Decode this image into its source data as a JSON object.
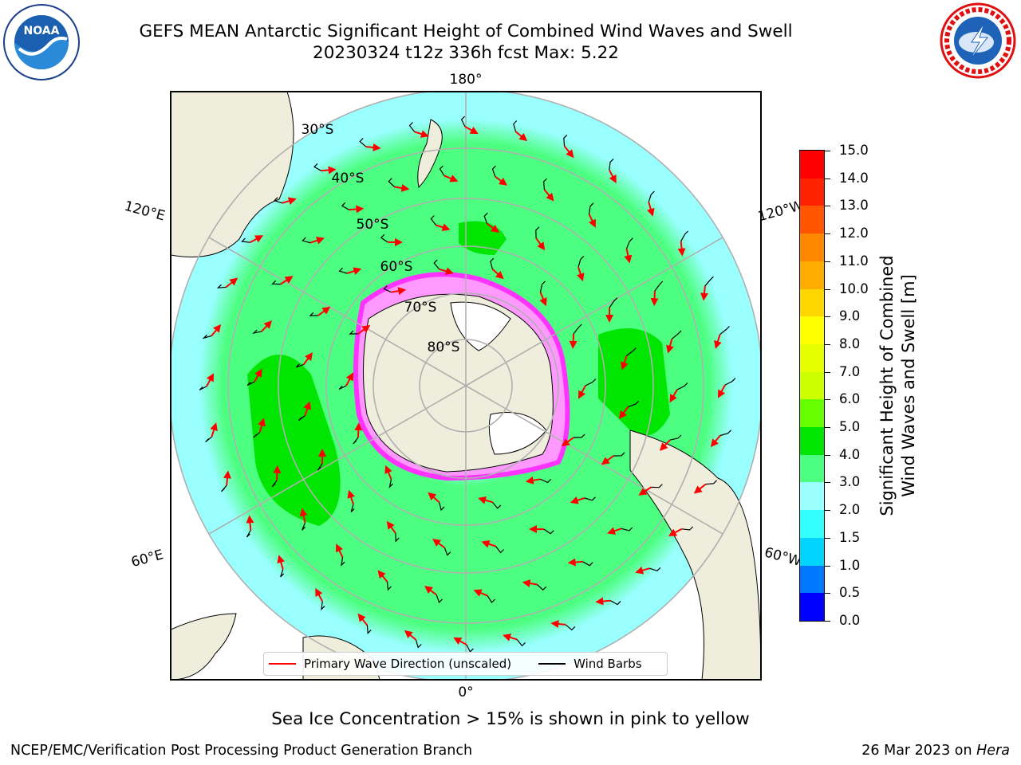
{
  "title_line1": "GEFS MEAN Antarctic Significant Height of Combined Wind Waves and Swell",
  "title_line2": "20230324 t12z 336h fcst   Max: 5.22",
  "longitude_labels": {
    "top": "180°",
    "bottom": "0°",
    "upper_left": "120°E",
    "upper_right": "120°W",
    "lower_left": "60°E",
    "lower_right": "60°W"
  },
  "latitude_labels": [
    "30°S",
    "40°S",
    "50°S",
    "60°S",
    "70°S",
    "80°S"
  ],
  "colorbar": {
    "title_line1": "Significant Height of Combined",
    "title_line2": "Wind Waves and Swell [m]",
    "tick_labels": [
      "0.0",
      "0.5",
      "1.0",
      "1.5",
      "2.0",
      "3.0",
      "4.0",
      "5.0",
      "6.0",
      "7.0",
      "8.0",
      "9.0",
      "10.0",
      "11.0",
      "12.0",
      "13.0",
      "14.0",
      "15.0"
    ],
    "colors": [
      "#0000ff",
      "#0077ff",
      "#00d4ff",
      "#33ffff",
      "#99ffff",
      "#4dff80",
      "#00e600",
      "#66ff00",
      "#ccff00",
      "#e6ff00",
      "#ffff00",
      "#ffd700",
      "#ffae00",
      "#ff8800",
      "#ff5500",
      "#ff2200",
      "#ff0000"
    ]
  },
  "legend": {
    "wave_label": "Primary Wave Direction (unscaled)",
    "wave_color": "#ff0000",
    "wind_label": "Wind Barbs",
    "wind_color": "#000000"
  },
  "note": "Sea Ice Concentration > 15% is shown in pink to yellow",
  "credit": "NCEP/EMC/Verification Post Processing Product Generation Branch",
  "date_text": "26 Mar 2023 on ",
  "host": "Hera",
  "logos": {
    "left": "noaa-logo",
    "right": "nws-logo",
    "left_text": "NOAA",
    "right_text": "NATIONAL WEATHER SERVICE"
  },
  "colors": {
    "land": "#efeddb",
    "ocean_light": "#99ffff",
    "ocean_mid": "#4dff80",
    "ocean_high": "#00e600",
    "ice_edge": "#ff44ff",
    "arrow": "#ff0000",
    "grid": "#b0b0b0"
  }
}
